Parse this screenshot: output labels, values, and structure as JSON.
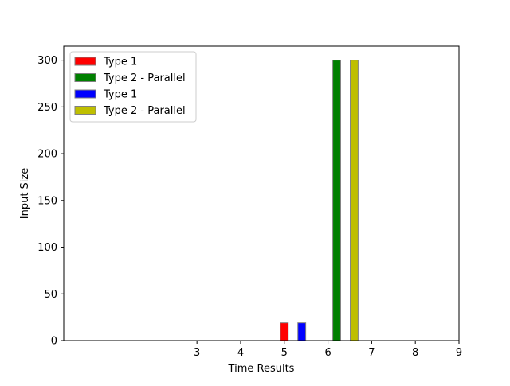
{
  "chart_data": {
    "type": "bar",
    "title": "",
    "xlabel": "Time Results",
    "ylabel": "Input Size",
    "xlim": [
      -0.05,
      9
    ],
    "ylim": [
      0,
      315
    ],
    "xticks": [
      3,
      4,
      5,
      6,
      7,
      8,
      9
    ],
    "yticks": [
      0,
      50,
      100,
      150,
      200,
      250,
      300
    ],
    "grid": false,
    "legend_position": "top-left",
    "bar_width": 0.18,
    "series": [
      {
        "name": "Type 1",
        "color": "#ff0000",
        "x": [
          5.0
        ],
        "values": [
          19
        ]
      },
      {
        "name": "Type 2 - Parallel",
        "color": "#008000",
        "x": [
          6.2
        ],
        "values": [
          300
        ]
      },
      {
        "name": "Type 1",
        "color": "#0000ff",
        "x": [
          5.4
        ],
        "values": [
          19
        ]
      },
      {
        "name": "Type 2 - Parallel",
        "color": "#bfbf00",
        "x": [
          6.6
        ],
        "values": [
          300
        ]
      }
    ]
  }
}
